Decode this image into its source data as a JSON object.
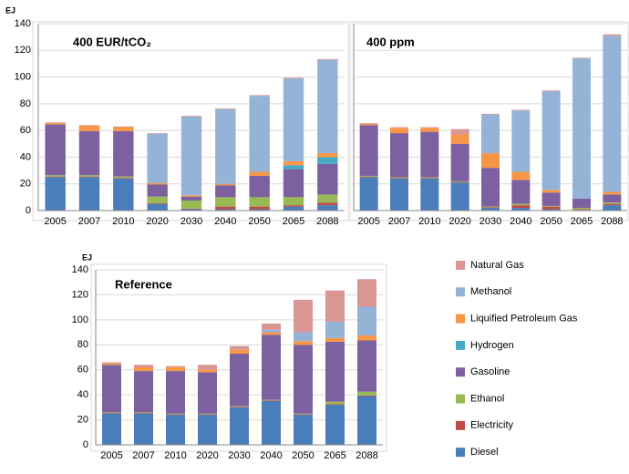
{
  "chart_data": [
    {
      "type": "bar",
      "stacked": true,
      "title": "400 EUR/tCO₂",
      "y_label": "EJ",
      "categories": [
        "2005",
        "2007",
        "2010",
        "2020",
        "2030",
        "2040",
        "2050",
        "2065",
        "2088"
      ],
      "ylim": [
        0,
        140
      ],
      "yticks": [
        0,
        20,
        40,
        60,
        80,
        100,
        120,
        140
      ],
      "ytick_labels": true,
      "grid": true,
      "series": [
        {
          "values": [
            25,
            25,
            24,
            5,
            1,
            1,
            1,
            3,
            4
          ]
        },
        {
          "values": [
            0.5,
            0.5,
            0.5,
            0.5,
            0.5,
            2,
            2,
            1,
            2
          ]
        },
        {
          "values": [
            1,
            1,
            1,
            5,
            6,
            7,
            7,
            6,
            6
          ]
        },
        {
          "values": [
            38,
            33,
            34,
            9,
            3,
            9,
            16,
            21,
            23
          ]
        },
        {
          "values": [
            0,
            0,
            0,
            0,
            0,
            0,
            0,
            3,
            5
          ]
        },
        {
          "values": [
            1,
            4,
            3,
            1,
            1,
            1,
            3,
            3,
            3
          ]
        },
        {
          "values": [
            0,
            0,
            0,
            37,
            59,
            56,
            57,
            62,
            70
          ]
        },
        {
          "values": [
            0.5,
            0.5,
            0.5,
            0.5,
            0.5,
            0.5,
            0.5,
            0.5,
            0.5
          ]
        }
      ]
    },
    {
      "type": "bar",
      "stacked": true,
      "title": "400 ppm",
      "categories": [
        "2005",
        "2007",
        "2010",
        "2020",
        "2030",
        "2040",
        "2050",
        "2065",
        "2088"
      ],
      "ylim": [
        0,
        140
      ],
      "yticks": [
        0,
        20,
        40,
        60,
        80,
        100,
        120,
        140
      ],
      "ytick_labels": false,
      "grid": true,
      "series": [
        {
          "values": [
            25,
            24,
            24,
            21,
            2,
            2,
            1,
            0.5,
            4
          ]
        },
        {
          "values": [
            0.5,
            0.5,
            0.5,
            0.5,
            0.5,
            2,
            2,
            0.5,
            1
          ]
        },
        {
          "values": [
            0.5,
            0.5,
            0.5,
            0.5,
            0.5,
            1,
            0.5,
            1,
            1
          ]
        },
        {
          "values": [
            38,
            33,
            34,
            28,
            29,
            18,
            10,
            7,
            6
          ]
        },
        {
          "values": [
            0,
            0,
            0,
            0,
            0,
            0,
            0,
            0,
            0
          ]
        },
        {
          "values": [
            1,
            4,
            3,
            7,
            11,
            6,
            2,
            0,
            2
          ]
        },
        {
          "values": [
            0,
            0,
            0,
            0,
            29,
            46,
            74,
            105,
            117
          ]
        },
        {
          "values": [
            0.5,
            0.5,
            0.5,
            4,
            0.5,
            0.5,
            0.5,
            0.5,
            1
          ]
        }
      ]
    },
    {
      "type": "bar",
      "stacked": true,
      "title": "Reference",
      "y_label": "EJ",
      "categories": [
        "2005",
        "2007",
        "2010",
        "2020",
        "2030",
        "2040",
        "2050",
        "2065",
        "2088"
      ],
      "ylim": [
        0,
        140
      ],
      "yticks": [
        0,
        20,
        40,
        60,
        80,
        100,
        120,
        140
      ],
      "ytick_labels": true,
      "grid": true,
      "series": [
        {
          "values": [
            25,
            25,
            24,
            24,
            30,
            35,
            24,
            32,
            39
          ]
        },
        {
          "values": [
            0.5,
            0.5,
            0.5,
            0.5,
            0.5,
            0.5,
            0.5,
            0.5,
            0.5
          ]
        },
        {
          "values": [
            0.5,
            0.5,
            0.5,
            0.5,
            0.5,
            0.5,
            0.5,
            2,
            3
          ]
        },
        {
          "values": [
            38,
            33,
            34,
            33,
            42,
            52,
            55,
            48,
            41
          ]
        },
        {
          "values": [
            0,
            0,
            0,
            0,
            0,
            0,
            0,
            0,
            0
          ]
        },
        {
          "values": [
            1,
            3,
            3,
            2,
            3,
            2,
            3,
            3,
            4
          ]
        },
        {
          "values": [
            0,
            0,
            0,
            0,
            0,
            2,
            7,
            13,
            23
          ]
        },
        {
          "values": [
            1,
            2,
            1,
            4,
            3,
            5,
            26,
            25,
            22
          ]
        }
      ]
    }
  ],
  "legend": {
    "position": "right",
    "items": [
      {
        "name": "Diesel",
        "color": "#4a7ebb"
      },
      {
        "name": "Electricity",
        "color": "#be4b48"
      },
      {
        "name": "Ethanol",
        "color": "#98b954"
      },
      {
        "name": "Gasoline",
        "color": "#7d60a0"
      },
      {
        "name": "Hydrogen",
        "color": "#46aac5"
      },
      {
        "name": "Liquified Petroleum Gas",
        "color": "#f79646"
      },
      {
        "name": "Methanol",
        "color": "#95b3d7"
      },
      {
        "name": "Natural Gas",
        "color": "#d99694"
      }
    ]
  }
}
